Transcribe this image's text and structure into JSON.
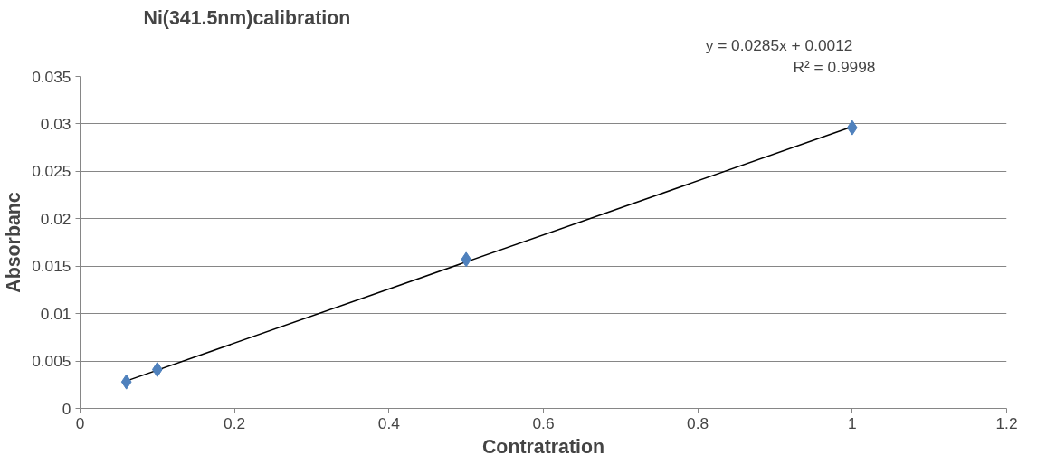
{
  "chart_data": {
    "type": "scatter",
    "title": "Ni(341.5nm)calibration",
    "xlabel": "Contratration",
    "ylabel": "Absorbanc",
    "annotations": [
      "y = 0.0285x + 0.0012",
      "R² = 0.9998"
    ],
    "series": [
      {
        "marker": "diamond",
        "color": "#4f81bd",
        "x": [
          0.06,
          0.1,
          0.5,
          1
        ],
        "values": [
          0.0028,
          0.0041,
          0.0157,
          0.0296
        ]
      },
      {
        "type": "line",
        "marker": "none",
        "color": "#000000",
        "x": [
          0.06,
          1
        ],
        "values": [
          0.0029,
          0.0297
        ]
      }
    ],
    "xlim": [
      0,
      1.2
    ],
    "xticks": [
      0,
      0.2,
      0.4,
      0.6,
      0.8,
      1,
      1.2
    ],
    "ylim": [
      0,
      0.035
    ],
    "yticks": [
      0,
      0.005,
      0.01,
      0.015,
      0.02,
      0.025,
      0.03,
      0.035
    ],
    "grid": "y",
    "line_style": "solid"
  }
}
